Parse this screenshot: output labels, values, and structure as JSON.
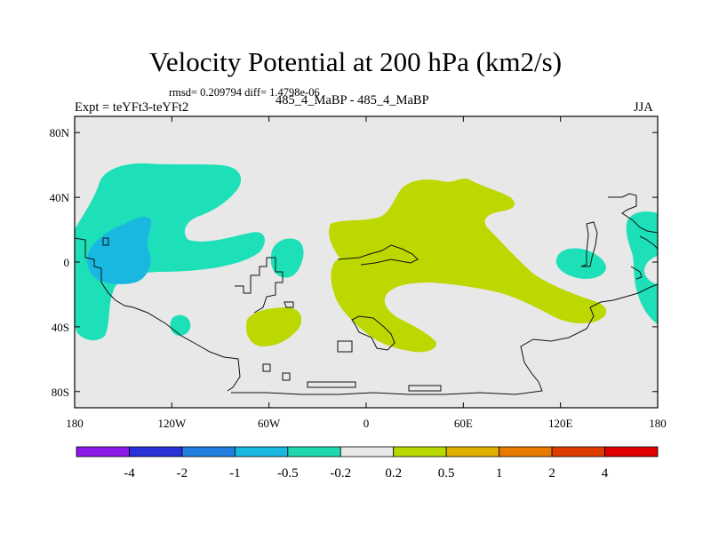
{
  "title": "Velocity Potential at 200 hPa (km2/s)",
  "stats": "rmsd= 0.209794 diff= 1.4798e-06",
  "left_label": "Expt = teYFt3-teYFt2",
  "center_label": "485_4_MaBP - 485_4_MaBP",
  "right_label": "JJA",
  "lat_ticks": [
    "80N",
    "40N",
    "0",
    "40S",
    "80S"
  ],
  "lon_ticks": [
    "180",
    "120W",
    "60W",
    "0",
    "60E",
    "120E",
    "180"
  ],
  "colorbar": {
    "labels": [
      "-4",
      "-2",
      "-1",
      "-0.5",
      "-0.2",
      "0.2",
      "0.5",
      "1",
      "2",
      "4"
    ],
    "colors": [
      "#8b1ae6",
      "#2832d8",
      "#1f7ee0",
      "#19b8e0",
      "#1ed8b0",
      "#e8e8e8",
      "#b8d800",
      "#e0b000",
      "#e87a00",
      "#e03c00",
      "#e00000"
    ]
  },
  "map_colors": {
    "background": "#e8e8e8",
    "positive": "#bcd800",
    "negative": "#1ee0b8",
    "negative_strong": "#19b8e0"
  }
}
